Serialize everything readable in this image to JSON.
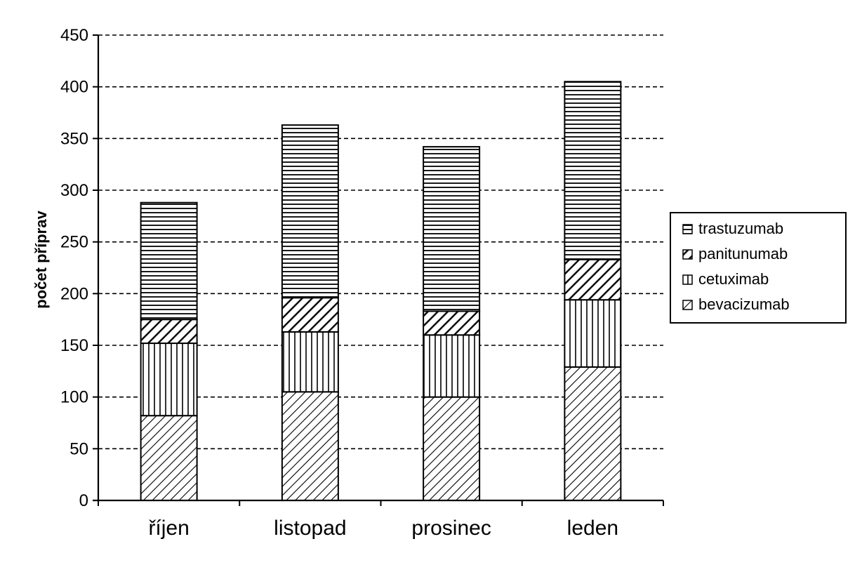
{
  "chart_data": {
    "type": "bar",
    "stacked": true,
    "categories": [
      "říjen",
      "listopad",
      "prosinec",
      "leden"
    ],
    "series": [
      {
        "name": "bevacizumab",
        "values": [
          82,
          105,
          100,
          129
        ],
        "pattern": "diagonal"
      },
      {
        "name": "cetuximab",
        "values": [
          70,
          58,
          60,
          65
        ],
        "pattern": "vertical"
      },
      {
        "name": "panitunumab",
        "values": [
          23,
          33,
          23,
          39
        ],
        "pattern": "cross"
      },
      {
        "name": "trastuzumab",
        "values": [
          113,
          167,
          159,
          172
        ],
        "pattern": "horizontal"
      }
    ],
    "ylabel": "počet příprav",
    "xlabel": "",
    "ylim": [
      0,
      450
    ],
    "yticks": [
      "0",
      "50",
      "100",
      "150",
      "200",
      "250",
      "300",
      "350",
      "400",
      "450"
    ],
    "grid": "horizontal-dashed",
    "legend_position": "right",
    "legend_order": [
      "trastuzumab",
      "panitunumab",
      "cetuximab",
      "bevacizumab"
    ]
  }
}
